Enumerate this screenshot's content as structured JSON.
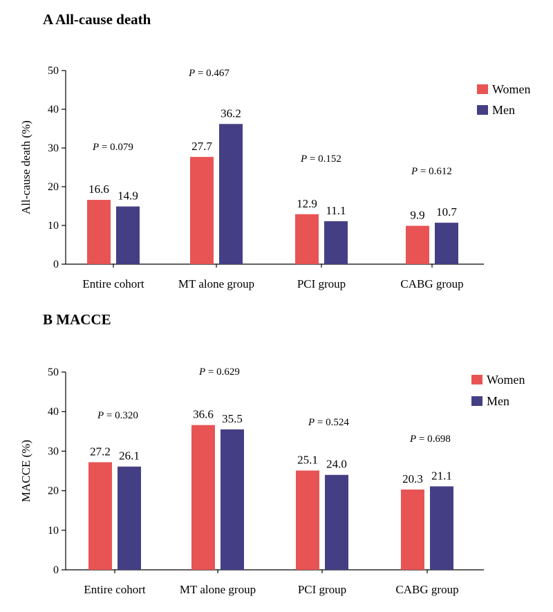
{
  "chart_data": [
    {
      "type": "bar",
      "title": "A  All-cause death",
      "ylabel": "All-cause death (%)",
      "ylim": [
        0,
        50
      ],
      "yticks": [
        0,
        10,
        20,
        30,
        40,
        50
      ],
      "categories": [
        "Entire cohort",
        "MT alone group",
        "PCI group",
        "CABG group"
      ],
      "series": [
        {
          "name": "Women",
          "color": "#e85454",
          "values": [
            16.6,
            27.7,
            12.9,
            9.9
          ]
        },
        {
          "name": "Men",
          "color": "#443f85",
          "values": [
            14.9,
            36.2,
            11.1,
            10.7
          ]
        }
      ],
      "value_labels": [
        [
          "16.6",
          "27.7",
          "12.9",
          "9.9"
        ],
        [
          "14.9",
          "36.2",
          "11.1",
          "10.7"
        ]
      ],
      "p_values": [
        "0.079",
        "0.467",
        "0.152",
        "0.612"
      ],
      "p_prefix": "P",
      "legend": "top-right",
      "grid": false
    },
    {
      "type": "bar",
      "title": "B MACCE",
      "ylabel": "MACCE (%)",
      "ylim": [
        0,
        50
      ],
      "yticks": [
        0,
        10,
        20,
        30,
        40,
        50
      ],
      "categories": [
        "Entire cohort",
        "MT alone group",
        "PCI group",
        "CABG group"
      ],
      "series": [
        {
          "name": "Women",
          "color": "#e85454",
          "values": [
            27.2,
            36.6,
            25.1,
            20.3
          ]
        },
        {
          "name": "Men",
          "color": "#443f85",
          "values": [
            26.1,
            35.5,
            24.0,
            21.1
          ]
        }
      ],
      "value_labels": [
        [
          "27.2",
          "36.6",
          "25.1",
          "20.3"
        ],
        [
          "26.1",
          "35.5",
          "24.0",
          "21.1"
        ]
      ],
      "p_values": [
        "0.320",
        "0.629",
        "0.524",
        "0.698"
      ],
      "p_prefix": "P",
      "legend": "top-right",
      "grid": false
    }
  ]
}
